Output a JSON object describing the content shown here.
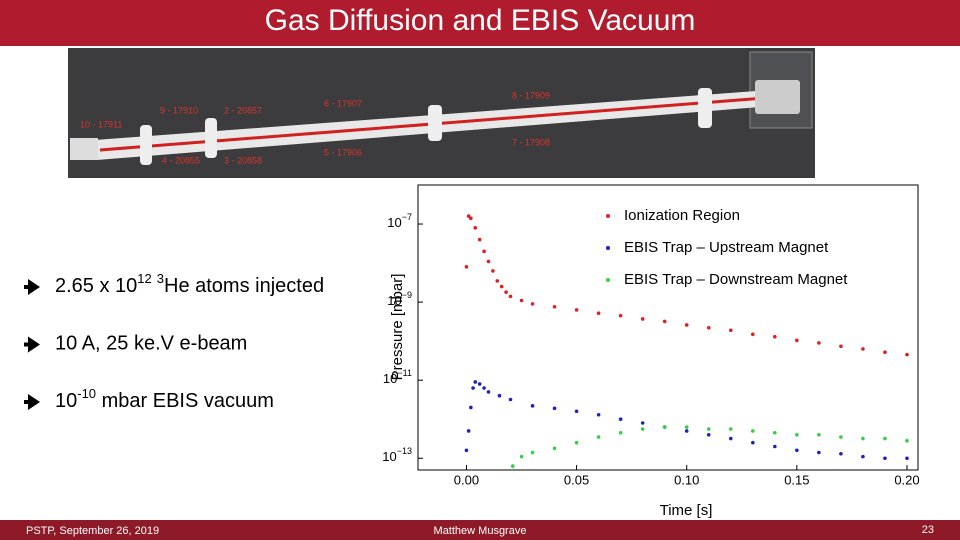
{
  "header": {
    "title": "Gas Diffusion and EBIS Vacuum"
  },
  "beamline_labels": [
    "10 - 17911",
    "9 - 17910",
    "2 - 20857",
    "6 - 17907",
    "8 - 17909",
    "4 - 20855",
    "3 - 20858",
    "5 - 17906",
    "7 - 17908"
  ],
  "bullets": [
    [
      {
        "text": "2.65 x 10"
      },
      {
        "text": "12",
        "sup": true
      },
      {
        "text": "3",
        "sup": true
      },
      {
        "text": "He atoms injected"
      }
    ],
    [
      {
        "text": "10 A, 25 ke.V e-beam"
      }
    ],
    [
      {
        "text": "10"
      },
      {
        "text": "-10",
        "sup": true
      },
      {
        "text": " mbar EBIS vacuum"
      }
    ]
  ],
  "chart_data": {
    "type": "scatter",
    "x_label": "Time [s]",
    "y_label": "Pressure [mbar]",
    "y_log": true,
    "grid": false,
    "legend": "upper right",
    "xlim": [
      -0.022,
      0.205
    ],
    "ylim": [
      5e-14,
      1e-06
    ],
    "xticks": [
      {
        "value": 0,
        "label": "0.00"
      },
      {
        "value": 0.05,
        "label": "0.05"
      },
      {
        "value": 0.1,
        "label": "0.10"
      },
      {
        "value": 0.15,
        "label": "0.15"
      },
      {
        "value": 0.2,
        "label": "0.20"
      }
    ],
    "yticks": [
      {
        "value": 1e-13,
        "label": "10−13"
      },
      {
        "value": 1e-11,
        "label": "10−11"
      },
      {
        "value": 1e-09,
        "label": "10−9"
      },
      {
        "value": 1e-07,
        "label": "10−7"
      }
    ],
    "series": [
      {
        "name": "Ionization Region",
        "color": "#e02020",
        "x": [
          0,
          0.001,
          0.002,
          0.004,
          0.006,
          0.008,
          0.01,
          0.012,
          0.014,
          0.016,
          0.018,
          0.02,
          0.025,
          0.03,
          0.04,
          0.05,
          0.06,
          0.07,
          0.08,
          0.09,
          0.1,
          0.11,
          0.12,
          0.13,
          0.14,
          0.15,
          0.16,
          0.17,
          0.18,
          0.19,
          0.2
        ],
        "values": [
          8e-09,
          1.6e-07,
          1.4e-07,
          8e-08,
          4e-08,
          2e-08,
          1.1e-08,
          6.3e-09,
          3.5e-09,
          2.5e-09,
          1.8e-09,
          1.4e-09,
          1.1e-09,
          9e-10,
          7.6e-10,
          6.3e-10,
          5.2e-10,
          4.5e-10,
          3.7e-10,
          3.2e-10,
          2.6e-10,
          2.2e-10,
          1.9e-10,
          1.5e-10,
          1.3e-10,
          1.05e-10,
          9e-11,
          7.4e-11,
          6.3e-11,
          5.2e-11,
          4.5e-11
        ]
      },
      {
        "name": "EBIS Trap – Upstream Magnet",
        "color": "#2020c0",
        "x": [
          0,
          0.001,
          0.002,
          0.003,
          0.004,
          0.006,
          0.008,
          0.01,
          0.015,
          0.02,
          0.03,
          0.04,
          0.05,
          0.06,
          0.07,
          0.08,
          0.09,
          0.1,
          0.11,
          0.12,
          0.13,
          0.14,
          0.15,
          0.16,
          0.17,
          0.18,
          0.19,
          0.2
        ],
        "values": [
          1.6e-13,
          5e-13,
          2e-12,
          6.3e-12,
          9e-12,
          8e-12,
          6.3e-12,
          5e-12,
          4e-12,
          3.2e-12,
          2.2e-12,
          1.9e-12,
          1.6e-12,
          1.3e-12,
          1e-12,
          8e-13,
          6.3e-13,
          5e-13,
          4e-13,
          3.2e-13,
          2.5e-13,
          2e-13,
          1.6e-13,
          1.4e-13,
          1.3e-13,
          1.1e-13,
          1e-13,
          1e-13
        ]
      },
      {
        "name": "EBIS Trap – Downstream Magnet",
        "color": "#30d040",
        "x": [
          0.021,
          0.025,
          0.03,
          0.04,
          0.05,
          0.06,
          0.07,
          0.08,
          0.09,
          0.1,
          0.11,
          0.12,
          0.13,
          0.14,
          0.15,
          0.16,
          0.17,
          0.18,
          0.19,
          0.2
        ],
        "values": [
          6.3e-14,
          1.1e-13,
          1.4e-13,
          1.8e-13,
          2.5e-13,
          3.5e-13,
          4.5e-13,
          5.6e-13,
          6.3e-13,
          6.3e-13,
          5.6e-13,
          5.6e-13,
          5e-13,
          4.5e-13,
          4e-13,
          4e-13,
          3.5e-13,
          3.2e-13,
          3.2e-13,
          2.8e-13
        ]
      }
    ]
  },
  "footer": {
    "left": "PSTP, September 26, 2019",
    "center": "Matthew Musgrave",
    "page": 23
  }
}
